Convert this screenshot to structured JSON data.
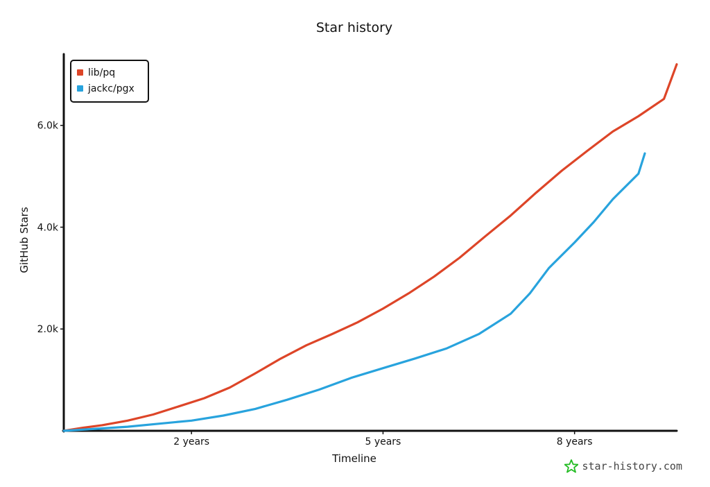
{
  "chart_data": {
    "type": "line",
    "title": "Star history",
    "xlabel": "Timeline",
    "ylabel": "GitHub Stars",
    "xlim": [
      0,
      9.6
    ],
    "ylim": [
      0,
      7400
    ],
    "x_ticks": [
      {
        "x": 2,
        "label": "2 years"
      },
      {
        "x": 5,
        "label": "5 years"
      },
      {
        "x": 8,
        "label": "8 years"
      }
    ],
    "y_ticks": [
      {
        "y": 2000,
        "label": "2.0k"
      },
      {
        "y": 4000,
        "label": "4.0k"
      },
      {
        "y": 6000,
        "label": "6.0k"
      }
    ],
    "grid": false,
    "legend_position": "top-left",
    "series": [
      {
        "name": "lib/pq",
        "color": "#dd4528",
        "points": [
          [
            0,
            0
          ],
          [
            0.3,
            60
          ],
          [
            0.6,
            110
          ],
          [
            1.0,
            200
          ],
          [
            1.4,
            320
          ],
          [
            1.8,
            480
          ],
          [
            2.2,
            640
          ],
          [
            2.6,
            850
          ],
          [
            3.0,
            1130
          ],
          [
            3.4,
            1420
          ],
          [
            3.8,
            1680
          ],
          [
            4.2,
            1900
          ],
          [
            4.6,
            2130
          ],
          [
            5.0,
            2400
          ],
          [
            5.4,
            2700
          ],
          [
            5.8,
            3030
          ],
          [
            6.2,
            3400
          ],
          [
            6.6,
            3820
          ],
          [
            7.0,
            4230
          ],
          [
            7.4,
            4680
          ],
          [
            7.8,
            5110
          ],
          [
            8.2,
            5500
          ],
          [
            8.6,
            5880
          ],
          [
            9.0,
            6180
          ],
          [
            9.4,
            6520
          ],
          [
            9.6,
            7200
          ]
        ]
      },
      {
        "name": "jackc/pgx",
        "color": "#28a3dd",
        "points": [
          [
            0,
            0
          ],
          [
            0.5,
            40
          ],
          [
            1.0,
            80
          ],
          [
            1.5,
            140
          ],
          [
            2.0,
            200
          ],
          [
            2.5,
            300
          ],
          [
            3.0,
            430
          ],
          [
            3.5,
            610
          ],
          [
            4.0,
            810
          ],
          [
            4.5,
            1040
          ],
          [
            5.0,
            1230
          ],
          [
            5.5,
            1420
          ],
          [
            6.0,
            1620
          ],
          [
            6.5,
            1900
          ],
          [
            7.0,
            2300
          ],
          [
            7.3,
            2700
          ],
          [
            7.6,
            3200
          ],
          [
            8.0,
            3700
          ],
          [
            8.3,
            4100
          ],
          [
            8.6,
            4550
          ],
          [
            9.0,
            5050
          ],
          [
            9.1,
            5450
          ]
        ]
      }
    ]
  },
  "watermark": {
    "text": "star-history.com",
    "icon": "star-icon",
    "color": "#22bb22"
  }
}
